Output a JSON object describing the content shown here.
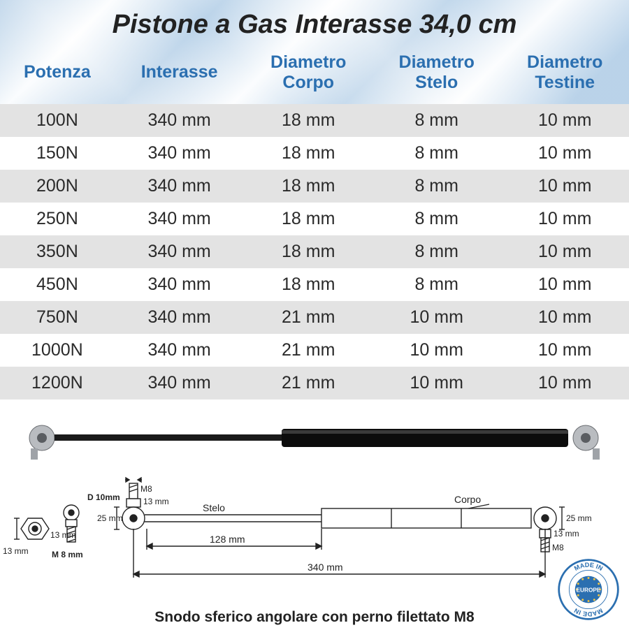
{
  "title": "Pistone a Gas Interasse  34,0 cm",
  "header_color": "#2b6fb0",
  "row_odd_bg": "#e3e3e3",
  "row_even_bg": "#ffffff",
  "columns": [
    "Potenza",
    "Interasse",
    "Diametro Corpo",
    "Diametro Stelo",
    "Diametro Testine"
  ],
  "rows": [
    [
      "100N",
      "340 mm",
      "18 mm",
      "8 mm",
      "10 mm"
    ],
    [
      "150N",
      "340 mm",
      "18 mm",
      "8 mm",
      "10 mm"
    ],
    [
      "200N",
      "340 mm",
      "18 mm",
      "8 mm",
      "10 mm"
    ],
    [
      "250N",
      "340 mm",
      "18 mm",
      "8 mm",
      "10 mm"
    ],
    [
      "350N",
      "340 mm",
      "18 mm",
      "8 mm",
      "10 mm"
    ],
    [
      "450N",
      "340 mm",
      "18 mm",
      "8 mm",
      "10 mm"
    ],
    [
      "750N",
      "340 mm",
      "21 mm",
      "10 mm",
      "10 mm"
    ],
    [
      "1000N",
      "340 mm",
      "21 mm",
      "10 mm",
      "10 mm"
    ],
    [
      "1200N",
      "340 mm",
      "21 mm",
      "10 mm",
      "10 mm"
    ]
  ],
  "diagram": {
    "caption": "Snodo sferico angolare con perno filettato M8",
    "labels": {
      "D": "D 10mm",
      "M": "M 8 mm",
      "M8_left": "M8",
      "M8_right": "M8",
      "stelo": "Stelo",
      "corpo": "Corpo",
      "len_total": "340 mm",
      "len_stelo": "128 mm",
      "h25_left": "25 mm",
      "h25_right": "25 mm",
      "h13_a": "13 mm",
      "h13_b": "13 mm",
      "h13_c": "13 mm",
      "h13_d": "13 mm"
    },
    "badge": {
      "top": "MADE IN",
      "mid": "EUROPE",
      "bot": "MADE IN"
    }
  }
}
